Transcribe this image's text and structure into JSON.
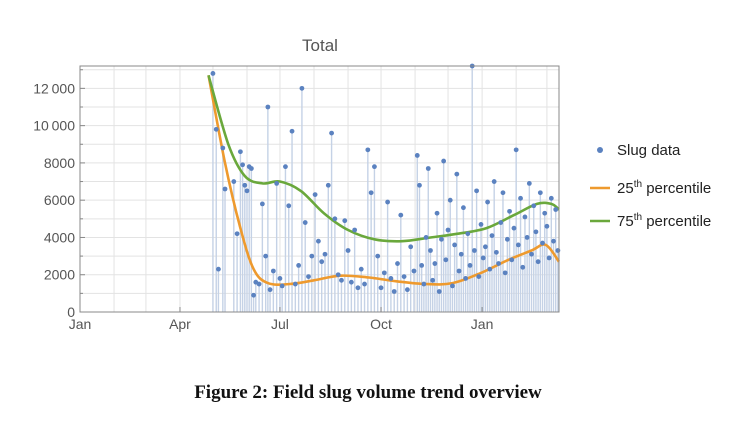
{
  "caption": "Figure 2: Field slug volume trend overview",
  "colors": {
    "scatter": "#5b82c0",
    "stem": "#c5d2e6",
    "p25": "#ee9a2e",
    "p75": "#6aa83c",
    "grid": "#e3e3e3",
    "axis": "#888888",
    "text": "#555555"
  },
  "chart_data": {
    "type": "scatter",
    "title": "Total",
    "xlabel": "",
    "ylabel": "",
    "xlim": [
      "2020-01-01",
      "2021-03-12"
    ],
    "ylim": [
      0,
      13200
    ],
    "grid": true,
    "legend_position": "right",
    "x_ticks": [
      {
        "date": "2020-01-01",
        "label": "Jan"
      },
      {
        "date": "2020-04-01",
        "label": "Apr"
      },
      {
        "date": "2020-07-01",
        "label": "Jul"
      },
      {
        "date": "2020-10-01",
        "label": "Oct"
      },
      {
        "date": "2021-01-01",
        "label": "Jan"
      }
    ],
    "y_ticks": [
      {
        "value": 0,
        "label": "0"
      },
      {
        "value": 2000,
        "label": "2000"
      },
      {
        "value": 4000,
        "label": "4000"
      },
      {
        "value": 6000,
        "label": "6000"
      },
      {
        "value": 8000,
        "label": "8000"
      },
      {
        "value": 10000,
        "label": "10 000"
      },
      {
        "value": 12000,
        "label": "12 000"
      }
    ],
    "legend": [
      {
        "key": "scatter",
        "label": "Slug data",
        "sup": "",
        "suffix": ""
      },
      {
        "key": "p25",
        "label": "25",
        "sup": "th",
        "suffix": " percentile"
      },
      {
        "key": "p75",
        "label": "75",
        "sup": "th",
        "suffix": " percentile"
      }
    ],
    "series": [
      {
        "key": "scatter",
        "name": "Slug data",
        "points": [
          [
            "2020-05-01",
            12800
          ],
          [
            "2020-05-04",
            9800
          ],
          [
            "2020-05-06",
            2300
          ],
          [
            "2020-05-10",
            8800
          ],
          [
            "2020-05-12",
            6600
          ],
          [
            "2020-05-20",
            7000
          ],
          [
            "2020-05-23",
            4200
          ],
          [
            "2020-05-26",
            8600
          ],
          [
            "2020-05-28",
            7900
          ],
          [
            "2020-05-30",
            6800
          ],
          [
            "2020-06-01",
            6500
          ],
          [
            "2020-06-03",
            7800
          ],
          [
            "2020-06-05",
            7700
          ],
          [
            "2020-06-07",
            900
          ],
          [
            "2020-06-09",
            1600
          ],
          [
            "2020-06-12",
            1500
          ],
          [
            "2020-06-15",
            5800
          ],
          [
            "2020-06-18",
            3000
          ],
          [
            "2020-06-20",
            11000
          ],
          [
            "2020-06-22",
            1200
          ],
          [
            "2020-06-25",
            2200
          ],
          [
            "2020-06-28",
            6900
          ],
          [
            "2020-07-01",
            1800
          ],
          [
            "2020-07-03",
            1400
          ],
          [
            "2020-07-06",
            7800
          ],
          [
            "2020-07-09",
            5700
          ],
          [
            "2020-07-12",
            9700
          ],
          [
            "2020-07-15",
            1500
          ],
          [
            "2020-07-18",
            2500
          ],
          [
            "2020-07-21",
            12000
          ],
          [
            "2020-07-24",
            4800
          ],
          [
            "2020-07-27",
            1900
          ],
          [
            "2020-07-30",
            3000
          ],
          [
            "2020-08-02",
            6300
          ],
          [
            "2020-08-05",
            3800
          ],
          [
            "2020-08-08",
            2700
          ],
          [
            "2020-08-11",
            3100
          ],
          [
            "2020-08-14",
            6800
          ],
          [
            "2020-08-17",
            9600
          ],
          [
            "2020-08-20",
            5000
          ],
          [
            "2020-08-23",
            2000
          ],
          [
            "2020-08-26",
            1700
          ],
          [
            "2020-08-29",
            4900
          ],
          [
            "2020-09-01",
            3300
          ],
          [
            "2020-09-04",
            1600
          ],
          [
            "2020-09-07",
            4400
          ],
          [
            "2020-09-10",
            1300
          ],
          [
            "2020-09-13",
            2300
          ],
          [
            "2020-09-16",
            1500
          ],
          [
            "2020-09-19",
            8700
          ],
          [
            "2020-09-22",
            6400
          ],
          [
            "2020-09-25",
            7800
          ],
          [
            "2020-09-28",
            3000
          ],
          [
            "2020-10-01",
            1300
          ],
          [
            "2020-10-04",
            2100
          ],
          [
            "2020-10-07",
            5900
          ],
          [
            "2020-10-10",
            1800
          ],
          [
            "2020-10-13",
            1100
          ],
          [
            "2020-10-16",
            2600
          ],
          [
            "2020-10-19",
            5200
          ],
          [
            "2020-10-22",
            1900
          ],
          [
            "2020-10-25",
            1200
          ],
          [
            "2020-10-28",
            3500
          ],
          [
            "2020-10-31",
            2200
          ],
          [
            "2020-11-03",
            8400
          ],
          [
            "2020-11-05",
            6800
          ],
          [
            "2020-11-07",
            2500
          ],
          [
            "2020-11-09",
            1500
          ],
          [
            "2020-11-11",
            4000
          ],
          [
            "2020-11-13",
            7700
          ],
          [
            "2020-11-15",
            3300
          ],
          [
            "2020-11-17",
            1700
          ],
          [
            "2020-11-19",
            2600
          ],
          [
            "2020-11-21",
            5300
          ],
          [
            "2020-11-23",
            1100
          ],
          [
            "2020-11-25",
            3900
          ],
          [
            "2020-11-27",
            8100
          ],
          [
            "2020-11-29",
            2800
          ],
          [
            "2020-12-01",
            4400
          ],
          [
            "2020-12-03",
            6000
          ],
          [
            "2020-12-05",
            1400
          ],
          [
            "2020-12-07",
            3600
          ],
          [
            "2020-12-09",
            7400
          ],
          [
            "2020-12-11",
            2200
          ],
          [
            "2020-12-13",
            3100
          ],
          [
            "2020-12-15",
            5600
          ],
          [
            "2020-12-17",
            1800
          ],
          [
            "2020-12-19",
            4200
          ],
          [
            "2020-12-21",
            2500
          ],
          [
            "2020-12-23",
            13200
          ],
          [
            "2020-12-25",
            3300
          ],
          [
            "2020-12-27",
            6500
          ],
          [
            "2020-12-29",
            1900
          ],
          [
            "2020-12-31",
            4700
          ],
          [
            "2021-01-02",
            2900
          ],
          [
            "2021-01-04",
            3500
          ],
          [
            "2021-01-06",
            5900
          ],
          [
            "2021-01-08",
            2300
          ],
          [
            "2021-01-10",
            4100
          ],
          [
            "2021-01-12",
            7000
          ],
          [
            "2021-01-14",
            3200
          ],
          [
            "2021-01-16",
            2600
          ],
          [
            "2021-01-18",
            4800
          ],
          [
            "2021-01-20",
            6400
          ],
          [
            "2021-01-22",
            2100
          ],
          [
            "2021-01-24",
            3900
          ],
          [
            "2021-01-26",
            5400
          ],
          [
            "2021-01-28",
            2800
          ],
          [
            "2021-01-30",
            4500
          ],
          [
            "2021-02-01",
            8700
          ],
          [
            "2021-02-03",
            3600
          ],
          [
            "2021-02-05",
            6100
          ],
          [
            "2021-02-07",
            2400
          ],
          [
            "2021-02-09",
            5100
          ],
          [
            "2021-02-11",
            4000
          ],
          [
            "2021-02-13",
            6900
          ],
          [
            "2021-02-15",
            3100
          ],
          [
            "2021-02-17",
            5700
          ],
          [
            "2021-02-19",
            4300
          ],
          [
            "2021-02-21",
            2700
          ],
          [
            "2021-02-23",
            6400
          ],
          [
            "2021-02-25",
            3700
          ],
          [
            "2021-02-27",
            5300
          ],
          [
            "2021-03-01",
            4600
          ],
          [
            "2021-03-03",
            2900
          ],
          [
            "2021-03-05",
            6100
          ],
          [
            "2021-03-07",
            3800
          ],
          [
            "2021-03-09",
            5500
          ],
          [
            "2021-03-11",
            3300
          ]
        ]
      },
      {
        "key": "p25",
        "name": "25th percentile",
        "points": [
          [
            "2020-04-27",
            12700
          ],
          [
            "2020-05-12",
            8000
          ],
          [
            "2020-05-26",
            4500
          ],
          [
            "2020-06-07",
            2300
          ],
          [
            "2020-06-20",
            1550
          ],
          [
            "2020-07-10",
            1500
          ],
          [
            "2020-08-01",
            1700
          ],
          [
            "2020-08-25",
            1950
          ],
          [
            "2020-09-20",
            1850
          ],
          [
            "2020-10-15",
            1650
          ],
          [
            "2020-11-10",
            1500
          ],
          [
            "2020-12-05",
            1550
          ],
          [
            "2020-12-31",
            2100
          ],
          [
            "2021-01-25",
            2800
          ],
          [
            "2021-02-15",
            3300
          ],
          [
            "2021-02-28",
            3600
          ],
          [
            "2021-03-12",
            2700
          ]
        ]
      },
      {
        "key": "p75",
        "name": "75th percentile",
        "points": [
          [
            "2020-04-27",
            12700
          ],
          [
            "2020-05-15",
            9000
          ],
          [
            "2020-05-30",
            7300
          ],
          [
            "2020-06-15",
            6900
          ],
          [
            "2020-07-01",
            7000
          ],
          [
            "2020-07-20",
            6500
          ],
          [
            "2020-08-10",
            5300
          ],
          [
            "2020-09-01",
            4400
          ],
          [
            "2020-09-25",
            3900
          ],
          [
            "2020-10-20",
            3800
          ],
          [
            "2020-11-15",
            4000
          ],
          [
            "2020-12-10",
            4200
          ],
          [
            "2021-01-05",
            4500
          ],
          [
            "2021-01-30",
            5200
          ],
          [
            "2021-02-20",
            5800
          ],
          [
            "2021-03-05",
            5800
          ],
          [
            "2021-03-12",
            5500
          ]
        ]
      }
    ]
  }
}
